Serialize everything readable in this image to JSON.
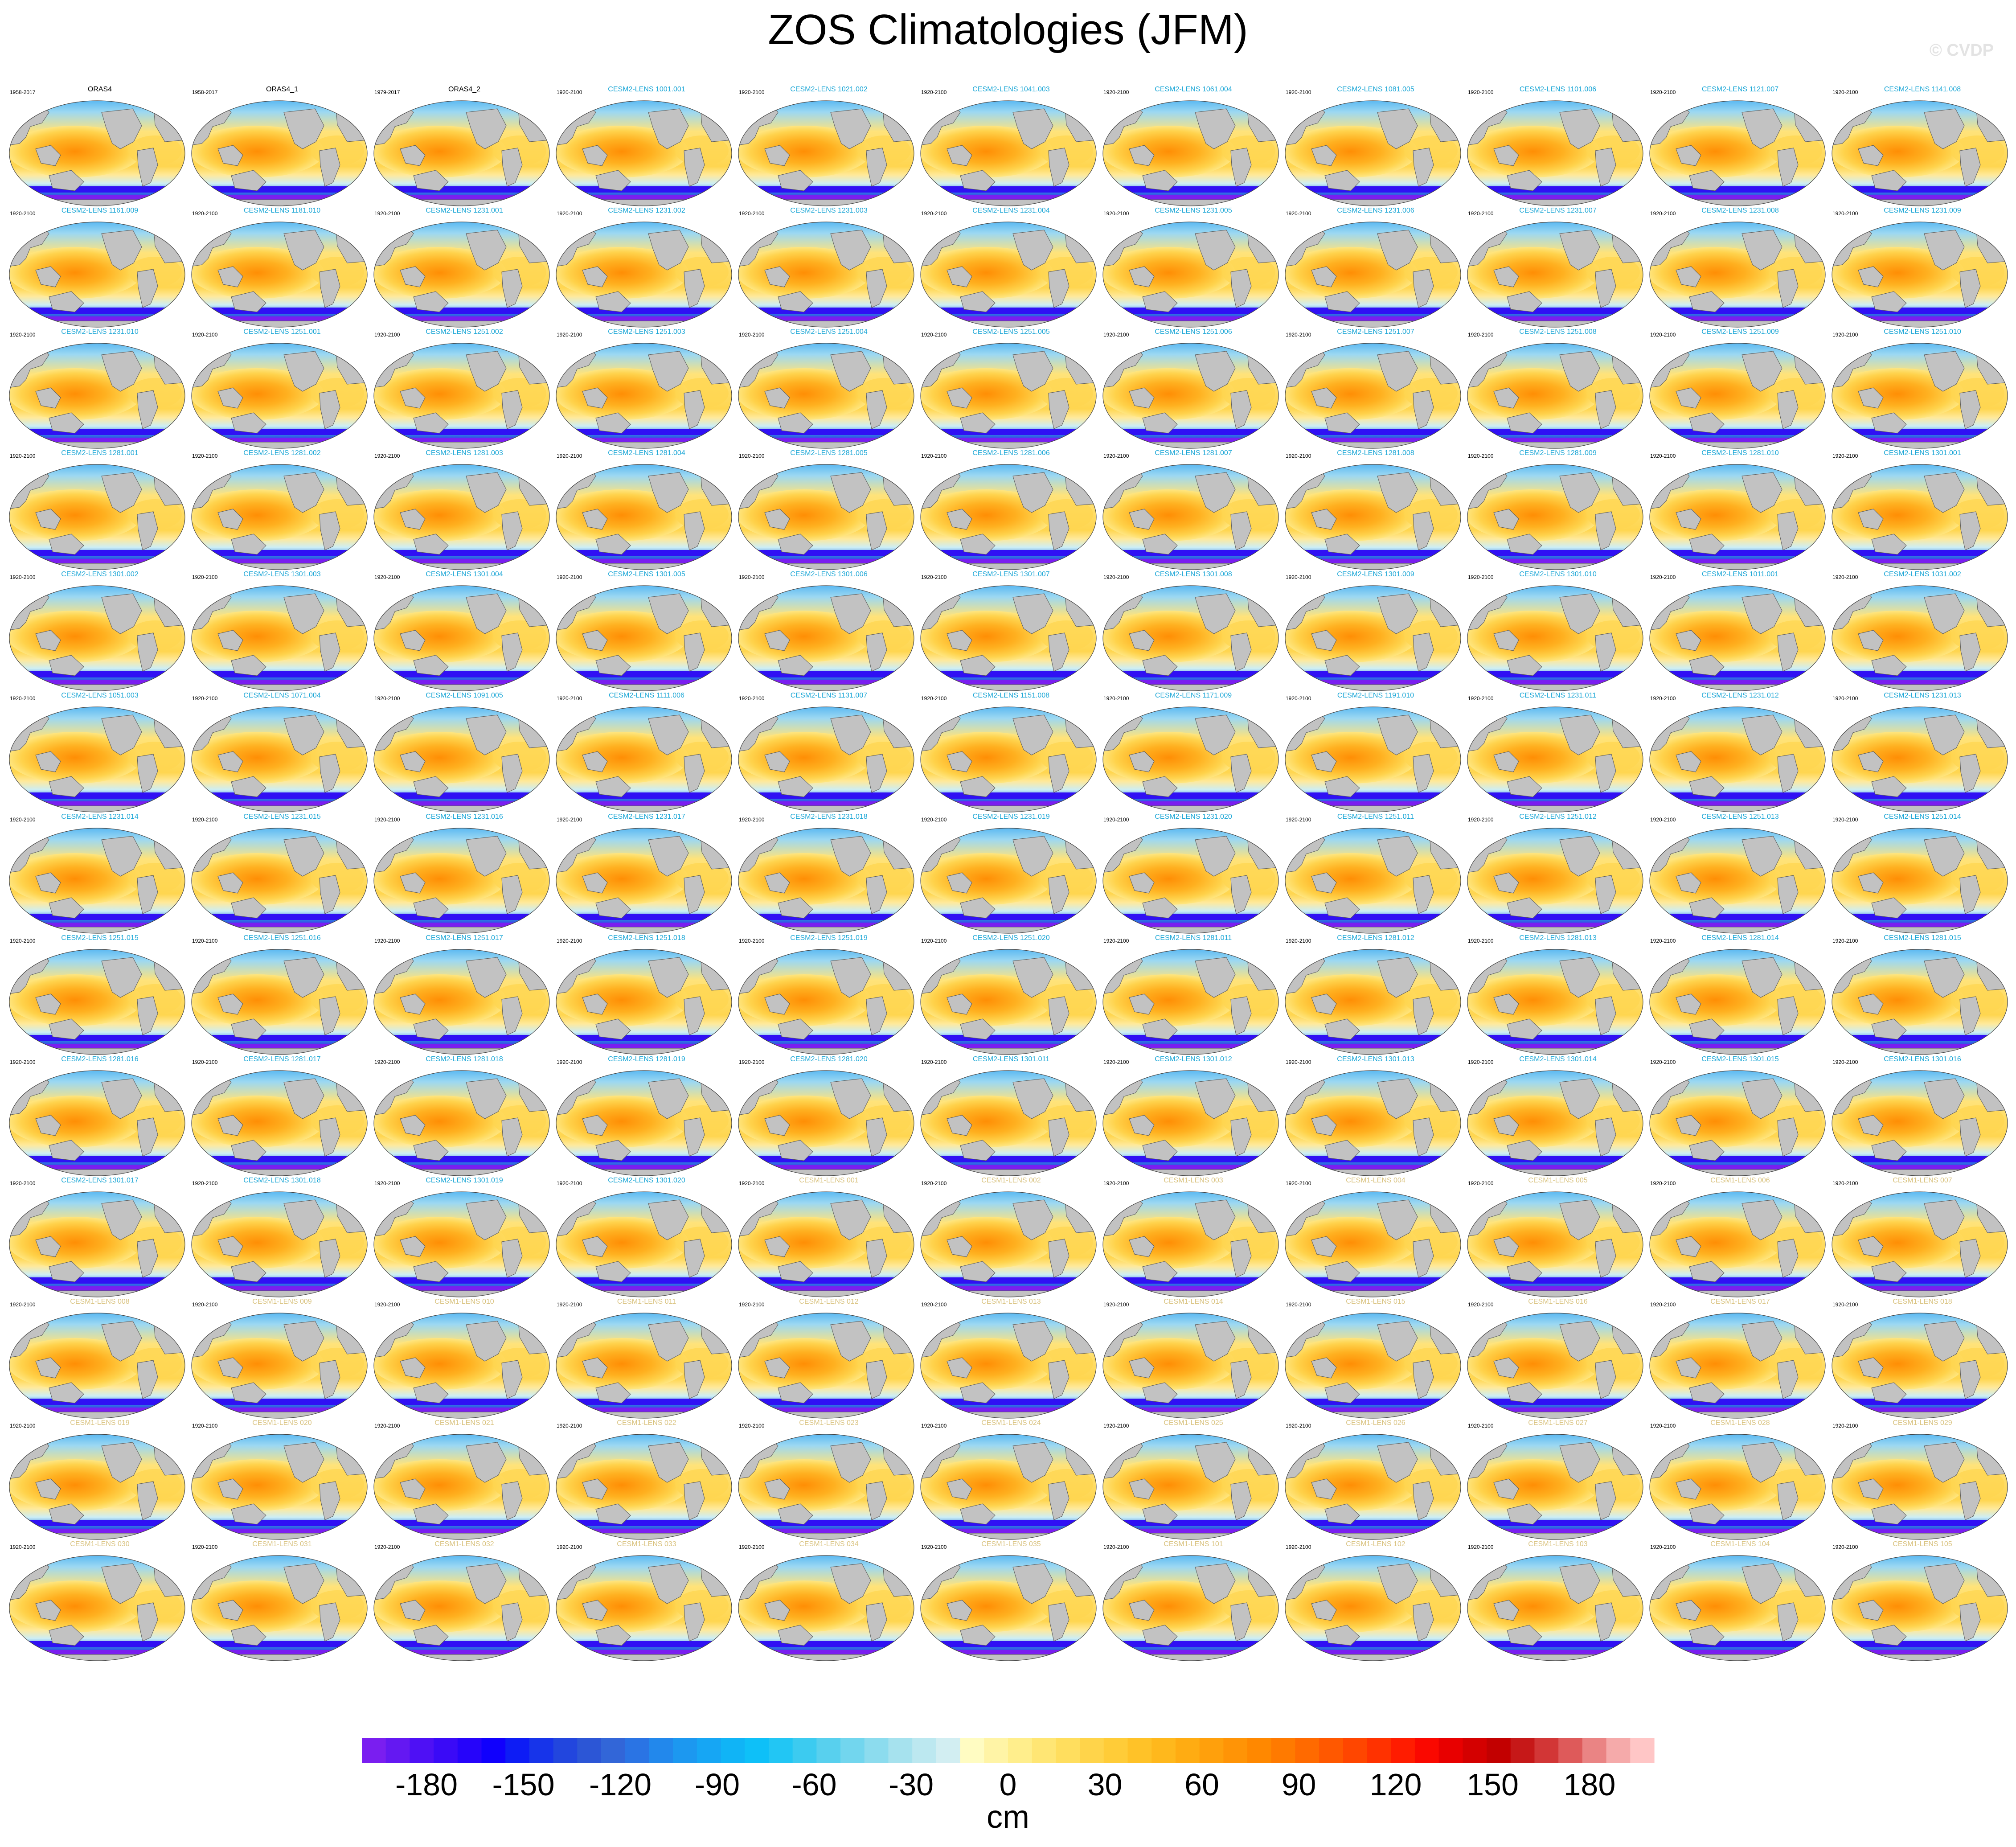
{
  "title": "ZOS Climatologies (JFM)",
  "watermark": "© CVDP",
  "colors": {
    "land": "#c2c2c2",
    "coast": "#5a5a5a",
    "title_obs": "#000000",
    "title_cesm2": "#1aa6d6",
    "title_cesm1": "#d9c27e"
  },
  "colorbar": {
    "unit": "cm",
    "ticks": [
      "-180",
      "-150",
      "-120",
      "-90",
      "-60",
      "-30",
      "0",
      "30",
      "60",
      "90",
      "120",
      "150",
      "180"
    ],
    "range": [
      -200,
      200
    ],
    "interval": 5,
    "colors": [
      "#7a1ef0",
      "#6418f2",
      "#4e10f5",
      "#3a0af7",
      "#2604fa",
      "#1000fd",
      "#0d1cf5",
      "#1734ea",
      "#2246de",
      "#2c56d6",
      "#3266d8",
      "#2a74e4",
      "#2288ec",
      "#1c98f0",
      "#16a6f4",
      "#10b4f6",
      "#0ec0f8",
      "#22c6f4",
      "#3ccbf0",
      "#58d0ee",
      "#72d6ee",
      "#8cdcee",
      "#a6e2ee",
      "#bce8f0",
      "#d2eef2",
      "#fffcc2",
      "#fff4a6",
      "#ffee8c",
      "#ffe674",
      "#ffde5e",
      "#ffd44a",
      "#ffcc38",
      "#ffc228",
      "#ffb81c",
      "#ffac12",
      "#ffa00c",
      "#ff9406",
      "#ff8800",
      "#ff7a00",
      "#ff6a00",
      "#ff5800",
      "#ff4600",
      "#ff3200",
      "#ff1c00",
      "#fa0800",
      "#e80000",
      "#d40000",
      "#c20000",
      "#c61818",
      "#d23636",
      "#de5a5a",
      "#ea8484",
      "#f5aaaa",
      "#ffc6c6"
    ]
  },
  "chart_data": {
    "type": "heatmap",
    "title": "ZOS Climatologies (JFM)",
    "colorbar_label": "cm",
    "value_range": [
      -200,
      200
    ],
    "panel_field_description": "sea surface height climatology, global map",
    "panels": [
      {
        "title": "ORAS4",
        "period": "1958-2017",
        "group": "obs"
      },
      {
        "title": "ORAS4_1",
        "period": "1958-2017",
        "group": "obs"
      },
      {
        "title": "ORAS4_2",
        "period": "1979-2017",
        "group": "obs"
      },
      {
        "title": "CESM2-LENS 1001.001",
        "period": "1920-2100",
        "group": "cesm2"
      },
      {
        "title": "CESM2-LENS 1021.002",
        "period": "1920-2100",
        "group": "cesm2"
      },
      {
        "title": "CESM2-LENS 1041.003",
        "period": "1920-2100",
        "group": "cesm2"
      },
      {
        "title": "CESM2-LENS 1061.004",
        "period": "1920-2100",
        "group": "cesm2"
      },
      {
        "title": "CESM2-LENS 1081.005",
        "period": "1920-2100",
        "group": "cesm2"
      },
      {
        "title": "CESM2-LENS 1101.006",
        "period": "1920-2100",
        "group": "cesm2"
      },
      {
        "title": "CESM2-LENS 1121.007",
        "period": "1920-2100",
        "group": "cesm2"
      },
      {
        "title": "CESM2-LENS 1141.008",
        "period": "1920-2100",
        "group": "cesm2"
      },
      {
        "title": "CESM2-LENS 1161.009",
        "period": "1920-2100",
        "group": "cesm2"
      },
      {
        "title": "CESM2-LENS 1181.010",
        "period": "1920-2100",
        "group": "cesm2"
      },
      {
        "title": "CESM2-LENS 1231.001",
        "period": "1920-2100",
        "group": "cesm2"
      },
      {
        "title": "CESM2-LENS 1231.002",
        "period": "1920-2100",
        "group": "cesm2"
      },
      {
        "title": "CESM2-LENS 1231.003",
        "period": "1920-2100",
        "group": "cesm2"
      },
      {
        "title": "CESM2-LENS 1231.004",
        "period": "1920-2100",
        "group": "cesm2"
      },
      {
        "title": "CESM2-LENS 1231.005",
        "period": "1920-2100",
        "group": "cesm2"
      },
      {
        "title": "CESM2-LENS 1231.006",
        "period": "1920-2100",
        "group": "cesm2"
      },
      {
        "title": "CESM2-LENS 1231.007",
        "period": "1920-2100",
        "group": "cesm2"
      },
      {
        "title": "CESM2-LENS 1231.008",
        "period": "1920-2100",
        "group": "cesm2"
      },
      {
        "title": "CESM2-LENS 1231.009",
        "period": "1920-2100",
        "group": "cesm2"
      },
      {
        "title": "CESM2-LENS 1231.010",
        "period": "1920-2100",
        "group": "cesm2"
      },
      {
        "title": "CESM2-LENS 1251.001",
        "period": "1920-2100",
        "group": "cesm2"
      },
      {
        "title": "CESM2-LENS 1251.002",
        "period": "1920-2100",
        "group": "cesm2"
      },
      {
        "title": "CESM2-LENS 1251.003",
        "period": "1920-2100",
        "group": "cesm2"
      },
      {
        "title": "CESM2-LENS 1251.004",
        "period": "1920-2100",
        "group": "cesm2"
      },
      {
        "title": "CESM2-LENS 1251.005",
        "period": "1920-2100",
        "group": "cesm2"
      },
      {
        "title": "CESM2-LENS 1251.006",
        "period": "1920-2100",
        "group": "cesm2"
      },
      {
        "title": "CESM2-LENS 1251.007",
        "period": "1920-2100",
        "group": "cesm2"
      },
      {
        "title": "CESM2-LENS 1251.008",
        "period": "1920-2100",
        "group": "cesm2"
      },
      {
        "title": "CESM2-LENS 1251.009",
        "period": "1920-2100",
        "group": "cesm2"
      },
      {
        "title": "CESM2-LENS 1251.010",
        "period": "1920-2100",
        "group": "cesm2"
      },
      {
        "title": "CESM2-LENS 1281.001",
        "period": "1920-2100",
        "group": "cesm2"
      },
      {
        "title": "CESM2-LENS 1281.002",
        "period": "1920-2100",
        "group": "cesm2"
      },
      {
        "title": "CESM2-LENS 1281.003",
        "period": "1920-2100",
        "group": "cesm2"
      },
      {
        "title": "CESM2-LENS 1281.004",
        "period": "1920-2100",
        "group": "cesm2"
      },
      {
        "title": "CESM2-LENS 1281.005",
        "period": "1920-2100",
        "group": "cesm2"
      },
      {
        "title": "CESM2-LENS 1281.006",
        "period": "1920-2100",
        "group": "cesm2"
      },
      {
        "title": "CESM2-LENS 1281.007",
        "period": "1920-2100",
        "group": "cesm2"
      },
      {
        "title": "CESM2-LENS 1281.008",
        "period": "1920-2100",
        "group": "cesm2"
      },
      {
        "title": "CESM2-LENS 1281.009",
        "period": "1920-2100",
        "group": "cesm2"
      },
      {
        "title": "CESM2-LENS 1281.010",
        "period": "1920-2100",
        "group": "cesm2"
      },
      {
        "title": "CESM2-LENS 1301.001",
        "period": "1920-2100",
        "group": "cesm2"
      },
      {
        "title": "CESM2-LENS 1301.002",
        "period": "1920-2100",
        "group": "cesm2"
      },
      {
        "title": "CESM2-LENS 1301.003",
        "period": "1920-2100",
        "group": "cesm2"
      },
      {
        "title": "CESM2-LENS 1301.004",
        "period": "1920-2100",
        "group": "cesm2"
      },
      {
        "title": "CESM2-LENS 1301.005",
        "period": "1920-2100",
        "group": "cesm2"
      },
      {
        "title": "CESM2-LENS 1301.006",
        "period": "1920-2100",
        "group": "cesm2"
      },
      {
        "title": "CESM2-LENS 1301.007",
        "period": "1920-2100",
        "group": "cesm2"
      },
      {
        "title": "CESM2-LENS 1301.008",
        "period": "1920-2100",
        "group": "cesm2"
      },
      {
        "title": "CESM2-LENS 1301.009",
        "period": "1920-2100",
        "group": "cesm2"
      },
      {
        "title": "CESM2-LENS 1301.010",
        "period": "1920-2100",
        "group": "cesm2"
      },
      {
        "title": "CESM2-LENS 1011.001",
        "period": "1920-2100",
        "group": "cesm2"
      },
      {
        "title": "CESM2-LENS 1031.002",
        "period": "1920-2100",
        "group": "cesm2"
      },
      {
        "title": "CESM2-LENS 1051.003",
        "period": "1920-2100",
        "group": "cesm2"
      },
      {
        "title": "CESM2-LENS 1071.004",
        "period": "1920-2100",
        "group": "cesm2"
      },
      {
        "title": "CESM2-LENS 1091.005",
        "period": "1920-2100",
        "group": "cesm2"
      },
      {
        "title": "CESM2-LENS 1111.006",
        "period": "1920-2100",
        "group": "cesm2"
      },
      {
        "title": "CESM2-LENS 1131.007",
        "period": "1920-2100",
        "group": "cesm2"
      },
      {
        "title": "CESM2-LENS 1151.008",
        "period": "1920-2100",
        "group": "cesm2"
      },
      {
        "title": "CESM2-LENS 1171.009",
        "period": "1920-2100",
        "group": "cesm2"
      },
      {
        "title": "CESM2-LENS 1191.010",
        "period": "1920-2100",
        "group": "cesm2"
      },
      {
        "title": "CESM2-LENS 1231.011",
        "period": "1920-2100",
        "group": "cesm2"
      },
      {
        "title": "CESM2-LENS 1231.012",
        "period": "1920-2100",
        "group": "cesm2"
      },
      {
        "title": "CESM2-LENS 1231.013",
        "period": "1920-2100",
        "group": "cesm2"
      },
      {
        "title": "CESM2-LENS 1231.014",
        "period": "1920-2100",
        "group": "cesm2"
      },
      {
        "title": "CESM2-LENS 1231.015",
        "period": "1920-2100",
        "group": "cesm2"
      },
      {
        "title": "CESM2-LENS 1231.016",
        "period": "1920-2100",
        "group": "cesm2"
      },
      {
        "title": "CESM2-LENS 1231.017",
        "period": "1920-2100",
        "group": "cesm2"
      },
      {
        "title": "CESM2-LENS 1231.018",
        "period": "1920-2100",
        "group": "cesm2"
      },
      {
        "title": "CESM2-LENS 1231.019",
        "period": "1920-2100",
        "group": "cesm2"
      },
      {
        "title": "CESM2-LENS 1231.020",
        "period": "1920-2100",
        "group": "cesm2"
      },
      {
        "title": "CESM2-LENS 1251.011",
        "period": "1920-2100",
        "group": "cesm2"
      },
      {
        "title": "CESM2-LENS 1251.012",
        "period": "1920-2100",
        "group": "cesm2"
      },
      {
        "title": "CESM2-LENS 1251.013",
        "period": "1920-2100",
        "group": "cesm2"
      },
      {
        "title": "CESM2-LENS 1251.014",
        "period": "1920-2100",
        "group": "cesm2"
      },
      {
        "title": "CESM2-LENS 1251.015",
        "period": "1920-2100",
        "group": "cesm2"
      },
      {
        "title": "CESM2-LENS 1251.016",
        "period": "1920-2100",
        "group": "cesm2"
      },
      {
        "title": "CESM2-LENS 1251.017",
        "period": "1920-2100",
        "group": "cesm2"
      },
      {
        "title": "CESM2-LENS 1251.018",
        "period": "1920-2100",
        "group": "cesm2"
      },
      {
        "title": "CESM2-LENS 1251.019",
        "period": "1920-2100",
        "group": "cesm2"
      },
      {
        "title": "CESM2-LENS 1251.020",
        "period": "1920-2100",
        "group": "cesm2"
      },
      {
        "title": "CESM2-LENS 1281.011",
        "period": "1920-2100",
        "group": "cesm2"
      },
      {
        "title": "CESM2-LENS 1281.012",
        "period": "1920-2100",
        "group": "cesm2"
      },
      {
        "title": "CESM2-LENS 1281.013",
        "period": "1920-2100",
        "group": "cesm2"
      },
      {
        "title": "CESM2-LENS 1281.014",
        "period": "1920-2100",
        "group": "cesm2"
      },
      {
        "title": "CESM2-LENS 1281.015",
        "period": "1920-2100",
        "group": "cesm2"
      },
      {
        "title": "CESM2-LENS 1281.016",
        "period": "1920-2100",
        "group": "cesm2"
      },
      {
        "title": "CESM2-LENS 1281.017",
        "period": "1920-2100",
        "group": "cesm2"
      },
      {
        "title": "CESM2-LENS 1281.018",
        "period": "1920-2100",
        "group": "cesm2"
      },
      {
        "title": "CESM2-LENS 1281.019",
        "period": "1920-2100",
        "group": "cesm2"
      },
      {
        "title": "CESM2-LENS 1281.020",
        "period": "1920-2100",
        "group": "cesm2"
      },
      {
        "title": "CESM2-LENS 1301.011",
        "period": "1920-2100",
        "group": "cesm2"
      },
      {
        "title": "CESM2-LENS 1301.012",
        "period": "1920-2100",
        "group": "cesm2"
      },
      {
        "title": "CESM2-LENS 1301.013",
        "period": "1920-2100",
        "group": "cesm2"
      },
      {
        "title": "CESM2-LENS 1301.014",
        "period": "1920-2100",
        "group": "cesm2"
      },
      {
        "title": "CESM2-LENS 1301.015",
        "period": "1920-2100",
        "group": "cesm2"
      },
      {
        "title": "CESM2-LENS 1301.016",
        "period": "1920-2100",
        "group": "cesm2"
      },
      {
        "title": "CESM2-LENS 1301.017",
        "period": "1920-2100",
        "group": "cesm2"
      },
      {
        "title": "CESM2-LENS 1301.018",
        "period": "1920-2100",
        "group": "cesm2"
      },
      {
        "title": "CESM2-LENS 1301.019",
        "period": "1920-2100",
        "group": "cesm2"
      },
      {
        "title": "CESM2-LENS 1301.020",
        "period": "1920-2100",
        "group": "cesm2"
      },
      {
        "title": "CESM1-LENS 001",
        "period": "1920-2100",
        "group": "cesm1"
      },
      {
        "title": "CESM1-LENS 002",
        "period": "1920-2100",
        "group": "cesm1"
      },
      {
        "title": "CESM1-LENS 003",
        "period": "1920-2100",
        "group": "cesm1"
      },
      {
        "title": "CESM1-LENS 004",
        "period": "1920-2100",
        "group": "cesm1"
      },
      {
        "title": "CESM1-LENS 005",
        "period": "1920-2100",
        "group": "cesm1"
      },
      {
        "title": "CESM1-LENS 006",
        "period": "1920-2100",
        "group": "cesm1"
      },
      {
        "title": "CESM1-LENS 007",
        "period": "1920-2100",
        "group": "cesm1"
      },
      {
        "title": "CESM1-LENS 008",
        "period": "1920-2100",
        "group": "cesm1"
      },
      {
        "title": "CESM1-LENS 009",
        "period": "1920-2100",
        "group": "cesm1"
      },
      {
        "title": "CESM1-LENS 010",
        "period": "1920-2100",
        "group": "cesm1"
      },
      {
        "title": "CESM1-LENS 011",
        "period": "1920-2100",
        "group": "cesm1"
      },
      {
        "title": "CESM1-LENS 012",
        "period": "1920-2100",
        "group": "cesm1"
      },
      {
        "title": "CESM1-LENS 013",
        "period": "1920-2100",
        "group": "cesm1"
      },
      {
        "title": "CESM1-LENS 014",
        "period": "1920-2100",
        "group": "cesm1"
      },
      {
        "title": "CESM1-LENS 015",
        "period": "1920-2100",
        "group": "cesm1"
      },
      {
        "title": "CESM1-LENS 016",
        "period": "1920-2100",
        "group": "cesm1"
      },
      {
        "title": "CESM1-LENS 017",
        "period": "1920-2100",
        "group": "cesm1"
      },
      {
        "title": "CESM1-LENS 018",
        "period": "1920-2100",
        "group": "cesm1"
      },
      {
        "title": "CESM1-LENS 019",
        "period": "1920-2100",
        "group": "cesm1"
      },
      {
        "title": "CESM1-LENS 020",
        "period": "1920-2100",
        "group": "cesm1"
      },
      {
        "title": "CESM1-LENS 021",
        "period": "1920-2100",
        "group": "cesm1"
      },
      {
        "title": "CESM1-LENS 022",
        "period": "1920-2100",
        "group": "cesm1"
      },
      {
        "title": "CESM1-LENS 023",
        "period": "1920-2100",
        "group": "cesm1"
      },
      {
        "title": "CESM1-LENS 024",
        "period": "1920-2100",
        "group": "cesm1"
      },
      {
        "title": "CESM1-LENS 025",
        "period": "1920-2100",
        "group": "cesm1"
      },
      {
        "title": "CESM1-LENS 026",
        "period": "1920-2100",
        "group": "cesm1"
      },
      {
        "title": "CESM1-LENS 027",
        "period": "1920-2100",
        "group": "cesm1"
      },
      {
        "title": "CESM1-LENS 028",
        "period": "1920-2100",
        "group": "cesm1"
      },
      {
        "title": "CESM1-LENS 029",
        "period": "1920-2100",
        "group": "cesm1"
      },
      {
        "title": "CESM1-LENS 030",
        "period": "1920-2100",
        "group": "cesm1"
      },
      {
        "title": "CESM1-LENS 031",
        "period": "1920-2100",
        "group": "cesm1"
      },
      {
        "title": "CESM1-LENS 032",
        "period": "1920-2100",
        "group": "cesm1"
      },
      {
        "title": "CESM1-LENS 033",
        "period": "1920-2100",
        "group": "cesm1"
      },
      {
        "title": "CESM1-LENS 034",
        "period": "1920-2100",
        "group": "cesm1"
      },
      {
        "title": "CESM1-LENS 035",
        "period": "1920-2100",
        "group": "cesm1"
      },
      {
        "title": "CESM1-LENS 101",
        "period": "1920-2100",
        "group": "cesm1"
      },
      {
        "title": "CESM1-LENS 102",
        "period": "1920-2100",
        "group": "cesm1"
      },
      {
        "title": "CESM1-LENS 103",
        "period": "1920-2100",
        "group": "cesm1"
      },
      {
        "title": "CESM1-LENS 104",
        "period": "1920-2100",
        "group": "cesm1"
      },
      {
        "title": "CESM1-LENS 105",
        "period": "1920-2100",
        "group": "cesm1"
      }
    ]
  }
}
